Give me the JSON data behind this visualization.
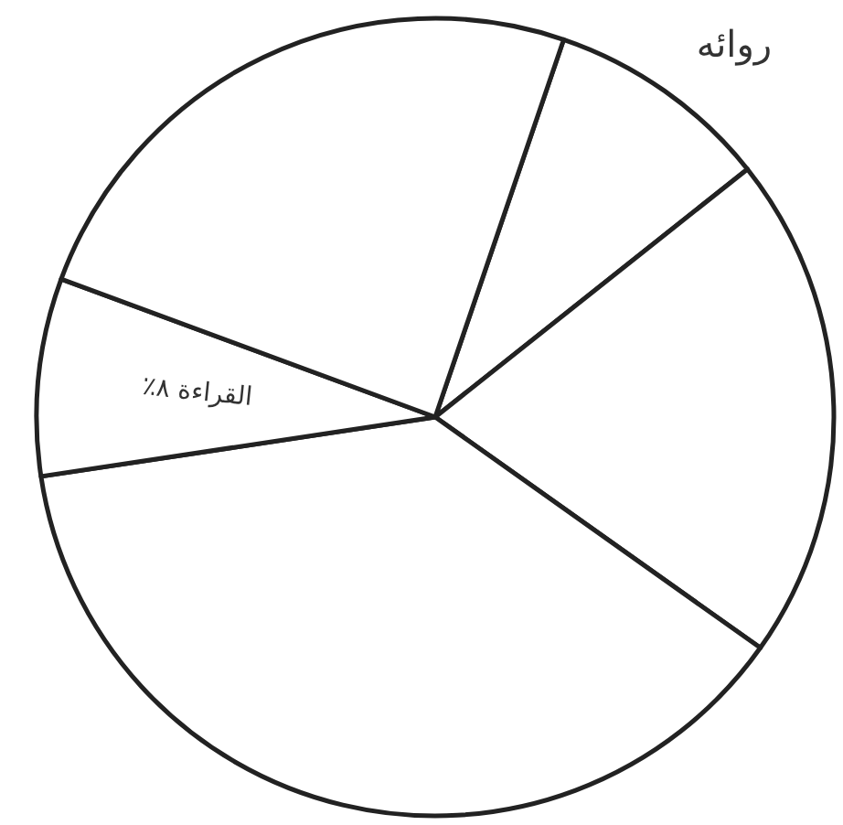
{
  "chart_data": {
    "type": "pie",
    "categories": [
      "روائه",
      null,
      null,
      "القراءة",
      null
    ],
    "values": [
      9.1,
      20.5,
      37.8,
      8,
      24.6
    ],
    "value_labels": [
      null,
      null,
      null,
      "٨٪",
      null
    ],
    "colors": [
      "#ffffff",
      "#ffffff",
      "#ffffff",
      "#ffffff",
      "#ffffff"
    ]
  }
}
